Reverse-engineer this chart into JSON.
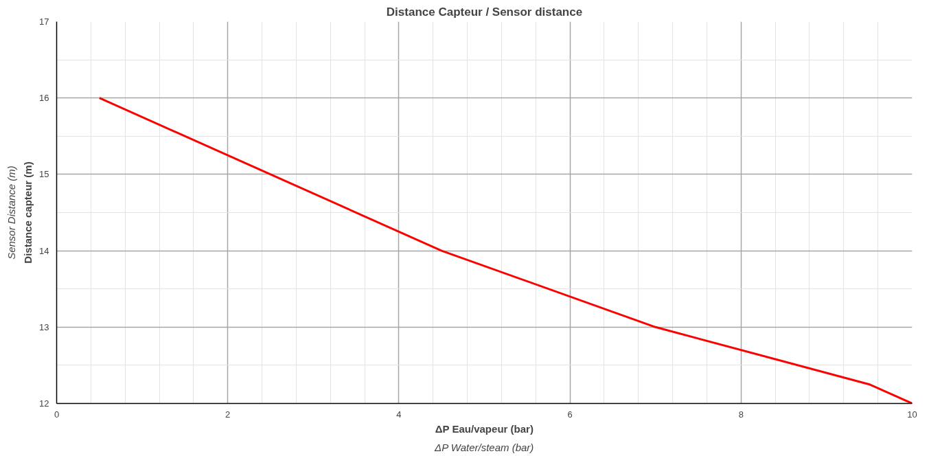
{
  "chart_data": {
    "type": "line",
    "title": "Distance Capteur / Sensor distance",
    "xlabel": "ΔP Eau/vapeur (bar)\nΔP Water/steam (bar)",
    "ylabel": "Distance capteur (m)\nSensor Distance (m)",
    "series": [
      {
        "color": "#ff0000",
        "x": [
          0.5,
          4.5,
          7,
          9.5,
          10
        ],
        "values": [
          16,
          14,
          13,
          12.25,
          12
        ]
      }
    ],
    "xlim": [
      0,
      10
    ],
    "ylim": [
      12,
      17
    ],
    "xticks": [
      0,
      2,
      4,
      6,
      8,
      10
    ],
    "yticks": [
      12,
      13,
      14,
      15,
      16,
      17
    ],
    "grid": true,
    "marker": "none",
    "line_style": "solid"
  }
}
